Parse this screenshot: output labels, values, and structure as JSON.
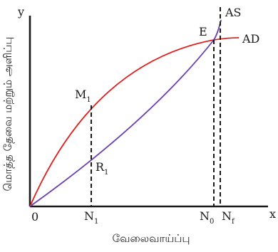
{
  "diagram": {
    "axes": {
      "y_letter": "y",
      "x_letter": "x",
      "origin": "0",
      "x_label": "வேலைவாய்ப்பு",
      "y_label": "மொத்த தேவை மற்றும் அளிப்பு"
    },
    "curves": {
      "supply": {
        "label": "AS",
        "color": "#6a3fb0"
      },
      "demand": {
        "label": "AD",
        "color": "#e0201e"
      }
    },
    "points": {
      "equilibrium": "E",
      "m1": {
        "main": "M",
        "sub": "1"
      },
      "r1": {
        "main": "R",
        "sub": "1"
      }
    },
    "x_marks": {
      "n1": {
        "main": "N",
        "sub": "1"
      },
      "n0": {
        "main": "N",
        "sub": "0"
      },
      "nf": {
        "main": "N",
        "sub": "f"
      }
    },
    "colors": {
      "axis": "#1a1a1a",
      "dashed": "#1a1a1a"
    }
  }
}
